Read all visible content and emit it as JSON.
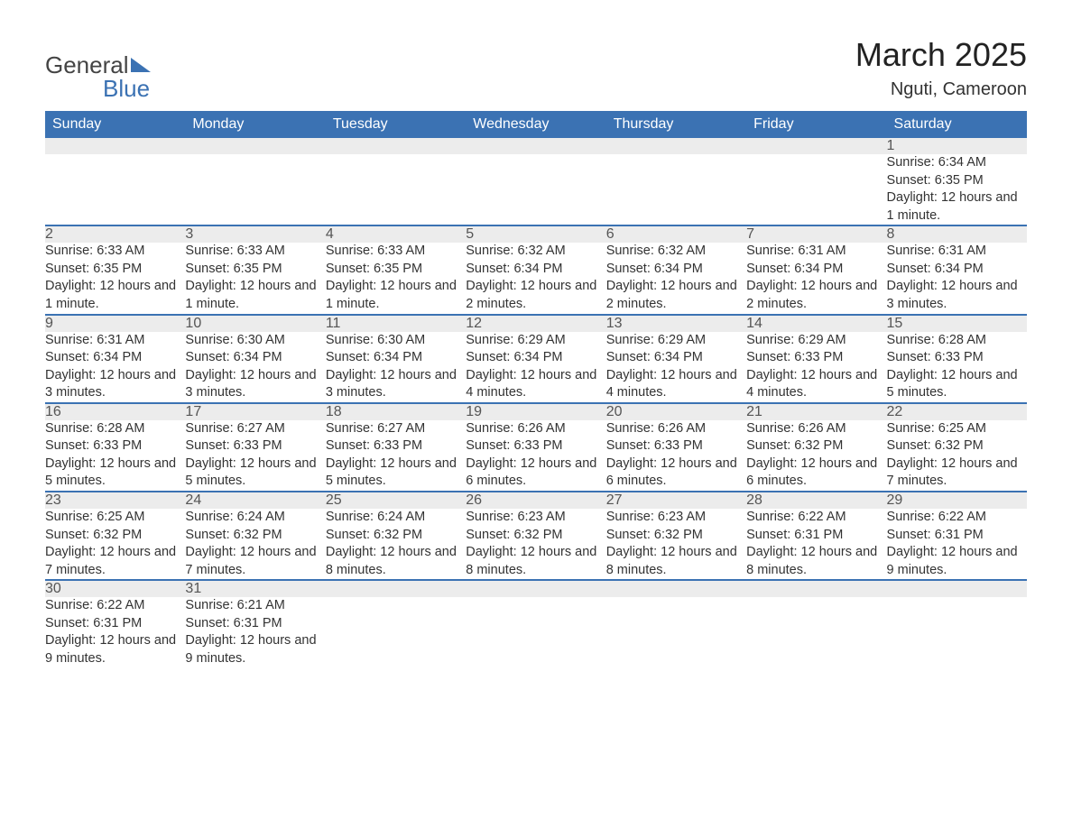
{
  "logo": {
    "text1": "General",
    "text2": "Blue"
  },
  "title": "March 2025",
  "location": "Nguti, Cameroon",
  "colors": {
    "header_bg": "#3b72b3",
    "header_text": "#ffffff",
    "daynum_bg": "#ececec",
    "row_border": "#3b72b3",
    "body_bg": "#ffffff",
    "text": "#333333"
  },
  "weekdays": [
    "Sunday",
    "Monday",
    "Tuesday",
    "Wednesday",
    "Thursday",
    "Friday",
    "Saturday"
  ],
  "weeks": [
    [
      null,
      null,
      null,
      null,
      null,
      null,
      {
        "n": "1",
        "sunrise": "Sunrise: 6:34 AM",
        "sunset": "Sunset: 6:35 PM",
        "daylight": "Daylight: 12 hours and 1 minute."
      }
    ],
    [
      {
        "n": "2",
        "sunrise": "Sunrise: 6:33 AM",
        "sunset": "Sunset: 6:35 PM",
        "daylight": "Daylight: 12 hours and 1 minute."
      },
      {
        "n": "3",
        "sunrise": "Sunrise: 6:33 AM",
        "sunset": "Sunset: 6:35 PM",
        "daylight": "Daylight: 12 hours and 1 minute."
      },
      {
        "n": "4",
        "sunrise": "Sunrise: 6:33 AM",
        "sunset": "Sunset: 6:35 PM",
        "daylight": "Daylight: 12 hours and 1 minute."
      },
      {
        "n": "5",
        "sunrise": "Sunrise: 6:32 AM",
        "sunset": "Sunset: 6:34 PM",
        "daylight": "Daylight: 12 hours and 2 minutes."
      },
      {
        "n": "6",
        "sunrise": "Sunrise: 6:32 AM",
        "sunset": "Sunset: 6:34 PM",
        "daylight": "Daylight: 12 hours and 2 minutes."
      },
      {
        "n": "7",
        "sunrise": "Sunrise: 6:31 AM",
        "sunset": "Sunset: 6:34 PM",
        "daylight": "Daylight: 12 hours and 2 minutes."
      },
      {
        "n": "8",
        "sunrise": "Sunrise: 6:31 AM",
        "sunset": "Sunset: 6:34 PM",
        "daylight": "Daylight: 12 hours and 3 minutes."
      }
    ],
    [
      {
        "n": "9",
        "sunrise": "Sunrise: 6:31 AM",
        "sunset": "Sunset: 6:34 PM",
        "daylight": "Daylight: 12 hours and 3 minutes."
      },
      {
        "n": "10",
        "sunrise": "Sunrise: 6:30 AM",
        "sunset": "Sunset: 6:34 PM",
        "daylight": "Daylight: 12 hours and 3 minutes."
      },
      {
        "n": "11",
        "sunrise": "Sunrise: 6:30 AM",
        "sunset": "Sunset: 6:34 PM",
        "daylight": "Daylight: 12 hours and 3 minutes."
      },
      {
        "n": "12",
        "sunrise": "Sunrise: 6:29 AM",
        "sunset": "Sunset: 6:34 PM",
        "daylight": "Daylight: 12 hours and 4 minutes."
      },
      {
        "n": "13",
        "sunrise": "Sunrise: 6:29 AM",
        "sunset": "Sunset: 6:34 PM",
        "daylight": "Daylight: 12 hours and 4 minutes."
      },
      {
        "n": "14",
        "sunrise": "Sunrise: 6:29 AM",
        "sunset": "Sunset: 6:33 PM",
        "daylight": "Daylight: 12 hours and 4 minutes."
      },
      {
        "n": "15",
        "sunrise": "Sunrise: 6:28 AM",
        "sunset": "Sunset: 6:33 PM",
        "daylight": "Daylight: 12 hours and 5 minutes."
      }
    ],
    [
      {
        "n": "16",
        "sunrise": "Sunrise: 6:28 AM",
        "sunset": "Sunset: 6:33 PM",
        "daylight": "Daylight: 12 hours and 5 minutes."
      },
      {
        "n": "17",
        "sunrise": "Sunrise: 6:27 AM",
        "sunset": "Sunset: 6:33 PM",
        "daylight": "Daylight: 12 hours and 5 minutes."
      },
      {
        "n": "18",
        "sunrise": "Sunrise: 6:27 AM",
        "sunset": "Sunset: 6:33 PM",
        "daylight": "Daylight: 12 hours and 5 minutes."
      },
      {
        "n": "19",
        "sunrise": "Sunrise: 6:26 AM",
        "sunset": "Sunset: 6:33 PM",
        "daylight": "Daylight: 12 hours and 6 minutes."
      },
      {
        "n": "20",
        "sunrise": "Sunrise: 6:26 AM",
        "sunset": "Sunset: 6:33 PM",
        "daylight": "Daylight: 12 hours and 6 minutes."
      },
      {
        "n": "21",
        "sunrise": "Sunrise: 6:26 AM",
        "sunset": "Sunset: 6:32 PM",
        "daylight": "Daylight: 12 hours and 6 minutes."
      },
      {
        "n": "22",
        "sunrise": "Sunrise: 6:25 AM",
        "sunset": "Sunset: 6:32 PM",
        "daylight": "Daylight: 12 hours and 7 minutes."
      }
    ],
    [
      {
        "n": "23",
        "sunrise": "Sunrise: 6:25 AM",
        "sunset": "Sunset: 6:32 PM",
        "daylight": "Daylight: 12 hours and 7 minutes."
      },
      {
        "n": "24",
        "sunrise": "Sunrise: 6:24 AM",
        "sunset": "Sunset: 6:32 PM",
        "daylight": "Daylight: 12 hours and 7 minutes."
      },
      {
        "n": "25",
        "sunrise": "Sunrise: 6:24 AM",
        "sunset": "Sunset: 6:32 PM",
        "daylight": "Daylight: 12 hours and 8 minutes."
      },
      {
        "n": "26",
        "sunrise": "Sunrise: 6:23 AM",
        "sunset": "Sunset: 6:32 PM",
        "daylight": "Daylight: 12 hours and 8 minutes."
      },
      {
        "n": "27",
        "sunrise": "Sunrise: 6:23 AM",
        "sunset": "Sunset: 6:32 PM",
        "daylight": "Daylight: 12 hours and 8 minutes."
      },
      {
        "n": "28",
        "sunrise": "Sunrise: 6:22 AM",
        "sunset": "Sunset: 6:31 PM",
        "daylight": "Daylight: 12 hours and 8 minutes."
      },
      {
        "n": "29",
        "sunrise": "Sunrise: 6:22 AM",
        "sunset": "Sunset: 6:31 PM",
        "daylight": "Daylight: 12 hours and 9 minutes."
      }
    ],
    [
      {
        "n": "30",
        "sunrise": "Sunrise: 6:22 AM",
        "sunset": "Sunset: 6:31 PM",
        "daylight": "Daylight: 12 hours and 9 minutes."
      },
      {
        "n": "31",
        "sunrise": "Sunrise: 6:21 AM",
        "sunset": "Sunset: 6:31 PM",
        "daylight": "Daylight: 12 hours and 9 minutes."
      },
      null,
      null,
      null,
      null,
      null
    ]
  ]
}
